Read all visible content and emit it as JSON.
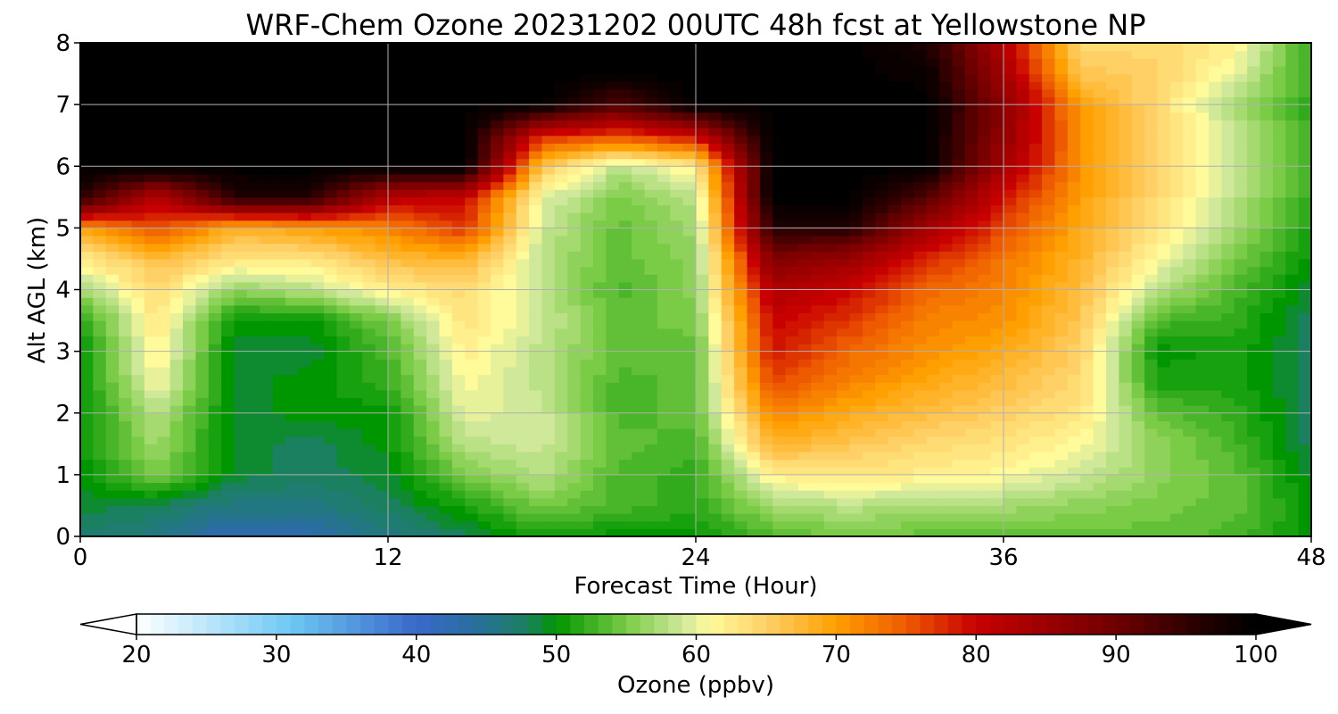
{
  "chart_data": {
    "type": "heatmap",
    "subtype": "filled-contour time-height cross section",
    "title": "WRF-Chem Ozone  20231202 00UTC 48h fcst at Yellowstone NP",
    "xlabel": "Forecast Time (Hour)",
    "ylabel": "Alt AGL (km)",
    "xlim": [
      0,
      48
    ],
    "ylim": [
      0,
      8
    ],
    "xticks": [
      0,
      12,
      24,
      36,
      48
    ],
    "yticks": [
      0,
      1,
      2,
      3,
      4,
      5,
      6,
      7,
      8
    ],
    "grid": true,
    "x": [
      0,
      3,
      6,
      9,
      12,
      15,
      18,
      21,
      24,
      27,
      30,
      33,
      36,
      39,
      42,
      45,
      48
    ],
    "y": [
      0,
      0.5,
      1,
      1.5,
      2,
      2.5,
      3,
      3.5,
      4,
      4.5,
      5,
      5.5,
      6,
      6.5,
      7,
      7.5,
      8
    ],
    "z": [
      [
        47,
        46,
        42,
        43,
        46,
        48,
        51,
        50,
        50,
        53,
        55,
        54,
        54,
        54,
        54,
        53,
        50
      ],
      [
        49,
        48,
        46,
        46,
        48,
        51,
        55,
        53,
        52,
        57,
        58,
        57,
        57,
        56,
        55,
        54,
        50
      ],
      [
        50,
        55,
        49,
        48,
        49,
        55,
        58,
        53,
        52,
        62,
        63,
        62,
        61,
        59,
        56,
        54,
        49
      ],
      [
        50,
        57,
        49,
        48,
        50,
        58,
        59,
        54,
        53,
        68,
        66,
        64,
        63,
        61,
        56,
        53,
        48
      ],
      [
        50,
        58,
        49,
        50,
        50,
        60,
        59,
        53,
        54,
        72,
        69,
        67,
        65,
        63,
        54,
        52,
        48
      ],
      [
        50,
        61,
        49,
        50,
        52,
        61,
        58,
        53,
        54,
        76,
        72,
        69,
        67,
        64,
        51,
        51,
        48
      ],
      [
        50,
        62,
        49,
        49,
        53,
        62,
        58,
        54,
        54,
        79,
        74,
        71,
        69,
        65,
        50,
        51,
        48
      ],
      [
        51,
        63,
        50,
        50,
        55,
        63,
        59,
        54,
        55,
        80,
        77,
        72,
        71,
        66,
        53,
        52,
        48
      ],
      [
        57,
        64,
        56,
        58,
        62,
        64,
        58,
        53,
        56,
        83,
        80,
        74,
        72,
        67,
        58,
        53,
        49
      ],
      [
        62,
        67,
        63,
        63,
        67,
        68,
        58,
        54,
        56,
        88,
        85,
        78,
        73,
        68,
        61,
        55,
        50
      ],
      [
        70,
        76,
        68,
        70,
        72,
        77,
        59,
        54,
        57,
        96,
        96,
        84,
        76,
        69,
        63,
        57,
        51
      ],
      [
        96,
        82,
        96,
        96,
        82,
        80,
        60,
        55,
        58,
        100,
        100,
        92,
        79,
        70,
        64,
        58,
        52
      ],
      [
        100,
        100,
        100,
        100,
        100,
        100,
        66,
        58,
        62,
        100,
        100,
        100,
        84,
        71,
        64,
        59,
        52
      ],
      [
        100,
        100,
        100,
        100,
        100,
        100,
        78,
        76,
        80,
        100,
        100,
        100,
        86,
        71,
        65,
        59,
        52
      ],
      [
        100,
        100,
        100,
        100,
        100,
        100,
        100,
        92,
        100,
        100,
        100,
        100,
        87,
        70,
        64,
        57,
        52
      ],
      [
        100,
        100,
        100,
        100,
        100,
        100,
        100,
        100,
        100,
        100,
        100,
        99,
        84,
        66,
        65,
        60,
        52
      ],
      [
        100,
        100,
        100,
        100,
        100,
        100,
        100,
        100,
        100,
        100,
        100,
        97,
        82,
        64,
        64,
        62,
        52
      ]
    ],
    "colorbar": {
      "label": "Ozone  (ppbv)",
      "min": 20,
      "max": 100,
      "ticks": [
        20,
        30,
        40,
        50,
        60,
        70,
        80,
        90,
        100
      ],
      "extend": "both",
      "orientation": "horizontal",
      "placement": "bottom",
      "color_stops": [
        {
          "value": 20,
          "color": "#ffffff"
        },
        {
          "value": 31,
          "color": "#6ec8f4"
        },
        {
          "value": 40,
          "color": "#3a68c9"
        },
        {
          "value": 44,
          "color": "#2a6ea0"
        },
        {
          "value": 48,
          "color": "#1b8060"
        },
        {
          "value": 50,
          "color": "#009600"
        },
        {
          "value": 55,
          "color": "#7acb46"
        },
        {
          "value": 59,
          "color": "#cfe89a"
        },
        {
          "value": 61,
          "color": "#fffa9a"
        },
        {
          "value": 65,
          "color": "#ffd066"
        },
        {
          "value": 70,
          "color": "#ff9f00"
        },
        {
          "value": 75,
          "color": "#ee5a00"
        },
        {
          "value": 80,
          "color": "#c80000"
        },
        {
          "value": 90,
          "color": "#6e0000"
        },
        {
          "value": 97,
          "color": "#1a0000"
        },
        {
          "value": 100,
          "color": "#000000"
        }
      ]
    }
  }
}
